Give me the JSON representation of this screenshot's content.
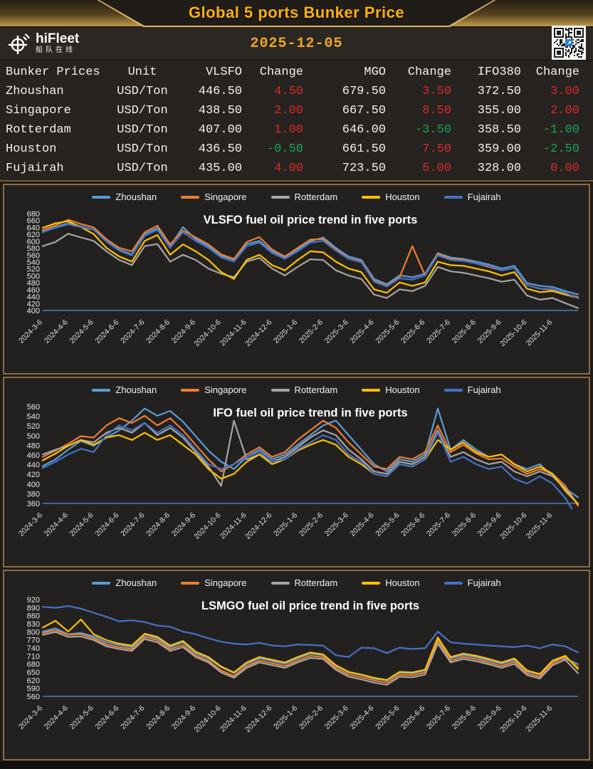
{
  "header": {
    "title": "Global 5 ports  Bunker Price"
  },
  "infobar": {
    "brand": "hiFleet",
    "brand_sub": "船队在线",
    "date": "2025-12-05",
    "accent_gold": "#efa62c"
  },
  "table": {
    "columns": [
      "Bunker Prices",
      "Unit",
      "VLSFO",
      "Change",
      "MGO",
      "Change",
      "IFO380",
      "Change"
    ],
    "rows": [
      {
        "port": "Zhoushan",
        "unit": "USD/Ton",
        "vlsfo": 446.5,
        "vlsfo_change": 4.5,
        "mgo": 679.5,
        "mgo_change": 3.5,
        "ifo380": 372.5,
        "ifo380_change": 3.0
      },
      {
        "port": "Singapore",
        "unit": "USD/Ton",
        "vlsfo": 438.5,
        "vlsfo_change": 2.0,
        "mgo": 667.5,
        "mgo_change": 8.5,
        "ifo380": 355.0,
        "ifo380_change": 2.0
      },
      {
        "port": "Rotterdam",
        "unit": "USD/Ton",
        "vlsfo": 407.0,
        "vlsfo_change": 1.0,
        "mgo": 646.0,
        "mgo_change": -3.5,
        "ifo380": 358.5,
        "ifo380_change": -1.0
      },
      {
        "port": "Houston",
        "unit": "USD/Ton",
        "vlsfo": 436.5,
        "vlsfo_change": -0.5,
        "mgo": 661.5,
        "mgo_change": 7.5,
        "ifo380": 359.0,
        "ifo380_change": -2.5
      },
      {
        "port": "Fujairah",
        "unit": "USD/Ton",
        "vlsfo": 435.0,
        "vlsfo_change": 4.0,
        "mgo": 723.5,
        "mgo_change": 5.0,
        "ifo380": 328.0,
        "ifo380_change": 0.0
      }
    ],
    "up_color": "#d92b2b",
    "down_color": "#1ea35c"
  },
  "chart_data": [
    {
      "type": "line",
      "title": "VLSFO fuel oil price trend in five ports",
      "x_labels": [
        "2024-3-6",
        "2024-4-6",
        "2024-5-6",
        "2024-6-6",
        "2024-7-6",
        "2024-8-6",
        "2024-9-6",
        "2024-10-6",
        "2024-11-6",
        "2024-12-6",
        "2025-1-6",
        "2025-2-6",
        "2025-3-6",
        "2025-4-6",
        "2025-5-6",
        "2025-6-6",
        "2025-7-6",
        "2025-8-6",
        "2025-9-6",
        "2025-10-6",
        "2025-11-6"
      ],
      "ylim": [
        400,
        680
      ],
      "ytick_step": 20,
      "grid": false,
      "legend_position": "top",
      "axis_color": "#4a7ebd",
      "series": [
        {
          "name": "Zhoushan",
          "color": "#5B9BD5",
          "values": [
            628,
            641,
            652,
            643,
            634,
            601,
            576,
            562,
            621,
            638,
            586,
            641,
            606,
            586,
            558,
            546,
            592,
            601,
            571,
            553,
            576,
            600,
            611,
            581,
            556,
            546,
            491,
            476,
            501,
            496,
            506,
            566,
            553,
            549,
            541,
            533,
            521,
            529,
            479,
            471,
            468,
            456,
            446.5
          ]
        },
        {
          "name": "Singapore",
          "color": "#ED7D31",
          "values": [
            632,
            646,
            662,
            650,
            640,
            606,
            581,
            571,
            626,
            645,
            591,
            631,
            611,
            591,
            562,
            549,
            598,
            612,
            576,
            556,
            581,
            605,
            606,
            576,
            551,
            541,
            486,
            471,
            496,
            586,
            501,
            563,
            549,
            546,
            536,
            526,
            516,
            523,
            473,
            463,
            459,
            449,
            438.5
          ]
        },
        {
          "name": "Rotterdam",
          "color": "#A5A5A5",
          "values": [
            586,
            598,
            622,
            611,
            601,
            571,
            546,
            531,
            586,
            592,
            541,
            561,
            546,
            521,
            506,
            496,
            541,
            552,
            521,
            501,
            526,
            548,
            546,
            516,
            501,
            491,
            446,
            436,
            461,
            456,
            471,
            526,
            513,
            509,
            501,
            493,
            483,
            489,
            443,
            431,
            436,
            421,
            407
          ]
        },
        {
          "name": "Houston",
          "color": "#FFC000",
          "values": [
            639,
            652,
            658,
            641,
            621,
            581,
            556,
            541,
            601,
            618,
            561,
            591,
            571,
            546,
            511,
            491,
            546,
            561,
            531,
            516,
            546,
            571,
            568,
            541,
            521,
            511,
            461,
            451,
            481,
            471,
            481,
            541,
            531,
            529,
            521,
            513,
            501,
            511,
            463,
            453,
            456,
            446,
            436.5
          ]
        },
        {
          "name": "Fujairah",
          "color": "#4472C4",
          "values": [
            626,
            639,
            649,
            641,
            633,
            599,
            573,
            559,
            616,
            633,
            581,
            626,
            601,
            581,
            553,
            541,
            586,
            596,
            566,
            549,
            571,
            596,
            601,
            573,
            549,
            539,
            483,
            469,
            493,
            489,
            501,
            559,
            546,
            543,
            536,
            529,
            516,
            523,
            473,
            463,
            462,
            451,
            435
          ]
        }
      ]
    },
    {
      "type": "line",
      "title": "IFO fuel oil price trend in five ports",
      "x_labels": [
        "2024-3-6",
        "2024-4-6",
        "2024-5-6",
        "2024-6-6",
        "2024-7-6",
        "2024-8-6",
        "2024-9-6",
        "2024-10-6",
        "2024-11-6",
        "2024-12-6",
        "2025-1-6",
        "2025-2-6",
        "2025-3-6",
        "2025-4-6",
        "2025-5-6",
        "2025-6-6",
        "2025-7-6",
        "2025-8-6",
        "2025-9-6",
        "2025-10-6",
        "2025-11-6"
      ],
      "ylim": [
        360,
        560
      ],
      "ytick_step": 20,
      "grid": false,
      "legend_position": "top",
      "axis_color": "#4a7ebd",
      "series": [
        {
          "name": "Zhoushan",
          "color": "#5B9BD5",
          "values": [
            437,
            451,
            471,
            489,
            479,
            496,
            511,
            531,
            556,
            541,
            551,
            529,
            499,
            469,
            446,
            431,
            456,
            471,
            451,
            461,
            481,
            501,
            521,
            531,
            501,
            471,
            441,
            426,
            451,
            446,
            461,
            556,
            471,
            491,
            471,
            456,
            461,
            441,
            431,
            441,
            416,
            391,
            372.5
          ]
        },
        {
          "name": "Singapore",
          "color": "#ED7D31",
          "values": [
            456,
            469,
            483,
            499,
            496,
            521,
            536,
            526,
            541,
            521,
            536,
            511,
            481,
            451,
            426,
            441,
            461,
            476,
            456,
            466,
            491,
            511,
            531,
            516,
            486,
            461,
            436,
            431,
            456,
            451,
            466,
            521,
            466,
            481,
            463,
            451,
            453,
            436,
            421,
            431,
            421,
            396,
            355
          ]
        },
        {
          "name": "Rotterdam",
          "color": "#A5A5A5",
          "values": [
            461,
            471,
            479,
            491,
            486,
            506,
            516,
            506,
            526,
            501,
            516,
            496,
            466,
            436,
            396,
            531,
            451,
            461,
            446,
            456,
            476,
            496,
            511,
            501,
            471,
            451,
            426,
            421,
            446,
            441,
            456,
            511,
            456,
            466,
            451,
            441,
            446,
            426,
            416,
            426,
            416,
            391,
            358.5
          ]
        },
        {
          "name": "Houston",
          "color": "#FFC000",
          "values": [
            449,
            463,
            479,
            491,
            481,
            496,
            501,
            491,
            506,
            491,
            501,
            481,
            461,
            431,
            411,
            421,
            446,
            461,
            441,
            451,
            469,
            481,
            491,
            481,
            456,
            441,
            421,
            416,
            441,
            436,
            451,
            491,
            471,
            486,
            466,
            456,
            461,
            441,
            426,
            436,
            421,
            386,
            359
          ]
        },
        {
          "name": "Fujairah",
          "color": "#4472C4",
          "values": [
            433,
            446,
            461,
            473,
            466,
            501,
            521,
            511,
            526,
            506,
            521,
            501,
            471,
            441,
            431,
            441,
            456,
            466,
            446,
            451,
            471,
            486,
            501,
            491,
            461,
            446,
            421,
            416,
            441,
            436,
            451,
            506,
            446,
            456,
            441,
            431,
            436,
            411,
            401,
            416,
            401,
            371,
            328
          ]
        }
      ]
    },
    {
      "type": "line",
      "title": "LSMGO fuel oil price trend in five ports",
      "x_labels": [
        "2024-3-6",
        "2024-4-6",
        "2024-5-6",
        "2024-6-6",
        "2024-7-6",
        "2024-8-6",
        "2024-9-6",
        "2024-10-6",
        "2024-11-6",
        "2024-12-6",
        "2025-1-6",
        "2025-2-6",
        "2025-3-6",
        "2025-4-6",
        "2025-5-6",
        "2025-6-6",
        "2025-7-6",
        "2025-8-6",
        "2025-9-6",
        "2025-10-6",
        "2025-11-6"
      ],
      "ylim": [
        560,
        920
      ],
      "ytick_step": 30,
      "grid": false,
      "legend_position": "top",
      "axis_color": "#4a7ebd",
      "series": [
        {
          "name": "Zhoushan",
          "color": "#5B9BD5",
          "values": [
            801,
            813,
            791,
            796,
            783,
            761,
            751,
            743,
            789,
            776,
            743,
            761,
            721,
            701,
            669,
            646,
            681,
            701,
            691,
            681,
            701,
            719,
            713,
            673,
            649,
            639,
            626,
            619,
            649,
            646,
            656,
            773,
            701,
            713,
            706,
            693,
            681,
            696,
            653,
            641,
            691,
            701,
            679.5
          ]
        },
        {
          "name": "Singapore",
          "color": "#ED7D31",
          "values": [
            796,
            806,
            789,
            791,
            776,
            753,
            743,
            736,
            781,
            769,
            736,
            751,
            713,
            693,
            656,
            636,
            673,
            693,
            683,
            673,
            693,
            711,
            706,
            666,
            641,
            631,
            619,
            611,
            641,
            639,
            649,
            766,
            693,
            706,
            699,
            686,
            673,
            689,
            646,
            633,
            683,
            706,
            667.5
          ]
        },
        {
          "name": "Rotterdam",
          "color": "#A5A5A5",
          "values": [
            789,
            799,
            781,
            783,
            769,
            746,
            736,
            729,
            773,
            761,
            729,
            743,
            706,
            686,
            649,
            629,
            666,
            686,
            676,
            666,
            686,
            703,
            699,
            659,
            633,
            623,
            611,
            603,
            633,
            631,
            641,
            756,
            686,
            699,
            691,
            679,
            666,
            681,
            639,
            626,
            676,
            696,
            646
          ]
        },
        {
          "name": "Houston",
          "color": "#FFC000",
          "values": [
            816,
            841,
            801,
            846,
            791,
            769,
            756,
            749,
            793,
            781,
            749,
            766,
            726,
            706,
            671,
            649,
            686,
            706,
            696,
            686,
            706,
            723,
            716,
            676,
            651,
            641,
            629,
            621,
            651,
            649,
            659,
            779,
            706,
            719,
            711,
            699,
            686,
            701,
            656,
            643,
            693,
            711,
            661.5
          ]
        },
        {
          "name": "Fujairah",
          "color": "#4472C4",
          "values": [
            893,
            889,
            896,
            886,
            871,
            856,
            839,
            843,
            836,
            823,
            819,
            801,
            791,
            776,
            763,
            756,
            753,
            759,
            749,
            746,
            753,
            751,
            749,
            713,
            706,
            741,
            739,
            721,
            741,
            736,
            739,
            801,
            761,
            756,
            753,
            749,
            746,
            743,
            749,
            739,
            753,
            746,
            723.5
          ]
        }
      ]
    }
  ]
}
